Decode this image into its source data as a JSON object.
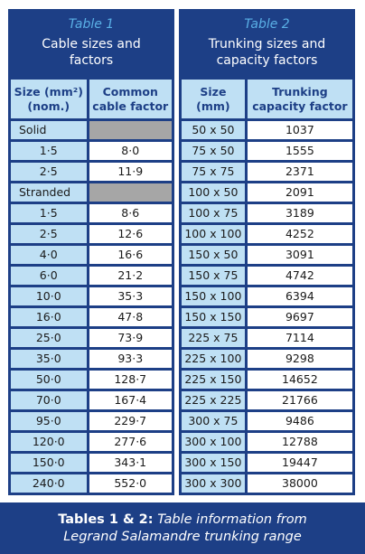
{
  "table1": {
    "number": "Table 1",
    "title_line1": "Cable sizes and",
    "title_line2": "factors",
    "col1_line1": "Size (mm²)",
    "col1_line2": "(nom.)",
    "col2_line1": "Common",
    "col2_line2": "cable factor",
    "rows": [
      {
        "size": "Solid",
        "factor": "",
        "section": true
      },
      {
        "size": "1·5",
        "factor": "8·0"
      },
      {
        "size": "2·5",
        "factor": "11·9"
      },
      {
        "size": "Stranded",
        "factor": "",
        "section": true
      },
      {
        "size": "1·5",
        "factor": "8·6"
      },
      {
        "size": "2·5",
        "factor": "12·6"
      },
      {
        "size": "4·0",
        "factor": "16·6"
      },
      {
        "size": "6·0",
        "factor": "21·2"
      },
      {
        "size": "10·0",
        "factor": "35·3"
      },
      {
        "size": "16·0",
        "factor": "47·8"
      },
      {
        "size": "25·0",
        "factor": "73·9"
      },
      {
        "size": "35·0",
        "factor": "93·3"
      },
      {
        "size": "50·0",
        "factor": "128·7"
      },
      {
        "size": "70·0",
        "factor": "167·4"
      },
      {
        "size": "95·0",
        "factor": "229·7"
      },
      {
        "size": "120·0",
        "factor": "277·6"
      },
      {
        "size": "150·0",
        "factor": "343·1"
      },
      {
        "size": "240·0",
        "factor": "552·0"
      }
    ]
  },
  "table2": {
    "number": "Table 2",
    "title_line1": "Trunking sizes and",
    "title_line2": "capacity factors",
    "col1_line1": "Size",
    "col1_line2": "(mm)",
    "col2_line1": "Trunking",
    "col2_line2": "capacity factor",
    "rows": [
      {
        "size": "50 x 50",
        "factor": "1037"
      },
      {
        "size": "75 x 50",
        "factor": "1555"
      },
      {
        "size": "75 x 75",
        "factor": "2371"
      },
      {
        "size": "100 x 50",
        "factor": "2091"
      },
      {
        "size": "100 x 75",
        "factor": "3189"
      },
      {
        "size": "100 x 100",
        "factor": "4252"
      },
      {
        "size": "150 x 50",
        "factor": "3091"
      },
      {
        "size": "150 x 75",
        "factor": "4742"
      },
      {
        "size": "150 x 100",
        "factor": "6394"
      },
      {
        "size": "150 x 150",
        "factor": "9697"
      },
      {
        "size": "225 x 75",
        "factor": "7114"
      },
      {
        "size": "225 x 100",
        "factor": "9298"
      },
      {
        "size": "225 x 150",
        "factor": "14652"
      },
      {
        "size": "225 x 225",
        "factor": "21766"
      },
      {
        "size": "300 x 75",
        "factor": "9486"
      },
      {
        "size": "300 x 100",
        "factor": "12788"
      },
      {
        "size": "300 x 150",
        "factor": "19447"
      },
      {
        "size": "300 x 300",
        "factor": "38000"
      }
    ]
  },
  "caption": {
    "bold": "Tables 1 & 2:",
    "italic_line1": "Table information from",
    "italic_line2": "Legrand Salamandre trunking range"
  },
  "colors": {
    "navy": "#1d3f86",
    "light_blue": "#bfe0f4",
    "accent_blue": "#5ab0e6",
    "gray_cell": "#a6a6a6"
  }
}
